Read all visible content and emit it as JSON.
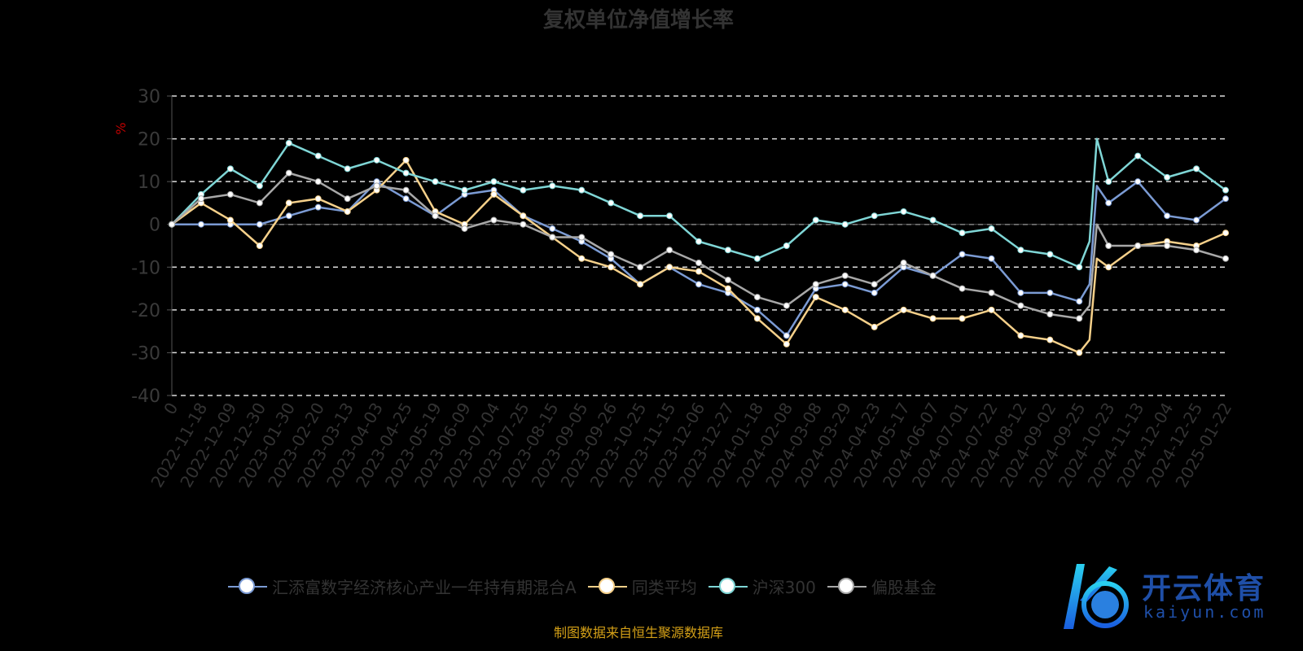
{
  "chart_data": {
    "type": "line",
    "title": "复权单位净值增长率",
    "ylabel": "%",
    "xlabel": "",
    "ylim": [
      -40,
      30
    ],
    "yticks": [
      30,
      20,
      10,
      0,
      -10,
      -20,
      -30,
      -40
    ],
    "grid": true,
    "legend_position": "bottom",
    "categories": [
      "0",
      "2022-11-18",
      "2022-12-09",
      "2022-12-30",
      "2023-01-30",
      "2023-02-20",
      "2023-03-13",
      "2023-04-03",
      "2023-04-25",
      "2023-05-19",
      "2023-06-09",
      "2023-07-04",
      "2023-07-25",
      "2023-08-15",
      "2023-09-05",
      "2023-09-26",
      "2023-10-25",
      "2023-11-15",
      "2023-12-06",
      "2023-12-27",
      "2024-01-18",
      "2024-02-08",
      "2024-03-08",
      "2024-03-29",
      "2024-04-23",
      "2024-05-17",
      "2024-06-07",
      "2024-07-01",
      "2024-07-22",
      "2024-08-12",
      "2024-09-02",
      "2024-09-25",
      "2024-10-23",
      "2024-11-13",
      "2024-12-04",
      "2024-12-25",
      "2025-01-22"
    ],
    "series": [
      {
        "name": "汇添富数字经济核心产业一年持有期混合A",
        "color": "#7b9bd4",
        "points": [
          [
            0,
            0
          ],
          [
            1,
            0
          ],
          [
            2,
            0
          ],
          [
            3,
            0
          ],
          [
            4,
            2
          ],
          [
            5,
            4
          ],
          [
            6,
            3
          ],
          [
            7,
            10
          ],
          [
            8,
            6
          ],
          [
            9,
            2
          ],
          [
            10,
            7
          ],
          [
            11,
            8
          ],
          [
            12,
            2
          ],
          [
            13,
            -1
          ],
          [
            14,
            -4
          ],
          [
            15,
            -8
          ],
          [
            16,
            -14
          ],
          [
            17,
            -10
          ],
          [
            18,
            -14
          ],
          [
            19,
            -16
          ],
          [
            20,
            -20
          ],
          [
            21,
            -26
          ],
          [
            22,
            -15
          ],
          [
            23,
            -14
          ],
          [
            24,
            -16
          ],
          [
            25,
            -10
          ],
          [
            26,
            -12
          ],
          [
            27,
            -7
          ],
          [
            28,
            -8
          ],
          [
            29,
            -16
          ],
          [
            30,
            -16
          ],
          [
            31,
            -18
          ],
          [
            31.35,
            -14
          ],
          [
            31.6,
            9
          ],
          [
            32,
            5
          ],
          [
            33,
            10
          ],
          [
            34,
            2
          ],
          [
            35,
            1
          ],
          [
            36,
            6
          ]
        ]
      },
      {
        "name": "同类平均",
        "color": "#f5d08a",
        "points": [
          [
            0,
            0
          ],
          [
            1,
            5
          ],
          [
            2,
            1
          ],
          [
            3,
            -5
          ],
          [
            4,
            5
          ],
          [
            5,
            6
          ],
          [
            6,
            3
          ],
          [
            7,
            8
          ],
          [
            8,
            15
          ],
          [
            9,
            3
          ],
          [
            10,
            0
          ],
          [
            11,
            7
          ],
          [
            12,
            2
          ],
          [
            13,
            -3
          ],
          [
            14,
            -8
          ],
          [
            15,
            -10
          ],
          [
            16,
            -14
          ],
          [
            17,
            -10
          ],
          [
            18,
            -11
          ],
          [
            19,
            -15
          ],
          [
            20,
            -22
          ],
          [
            21,
            -28
          ],
          [
            22,
            -17
          ],
          [
            23,
            -20
          ],
          [
            24,
            -24
          ],
          [
            25,
            -20
          ],
          [
            26,
            -22
          ],
          [
            27,
            -22
          ],
          [
            28,
            -20
          ],
          [
            29,
            -26
          ],
          [
            30,
            -27
          ],
          [
            31,
            -30
          ],
          [
            31.35,
            -27
          ],
          [
            31.6,
            -8
          ],
          [
            32,
            -10
          ],
          [
            33,
            -5
          ],
          [
            34,
            -4
          ],
          [
            35,
            -5
          ],
          [
            36,
            -2
          ]
        ]
      },
      {
        "name": "沪深300",
        "color": "#7fd6d6",
        "points": [
          [
            0,
            0
          ],
          [
            1,
            7
          ],
          [
            2,
            13
          ],
          [
            3,
            9
          ],
          [
            4,
            19
          ],
          [
            5,
            16
          ],
          [
            6,
            13
          ],
          [
            7,
            15
          ],
          [
            8,
            12
          ],
          [
            9,
            10
          ],
          [
            10,
            8
          ],
          [
            11,
            10
          ],
          [
            12,
            8
          ],
          [
            13,
            9
          ],
          [
            14,
            8
          ],
          [
            15,
            5
          ],
          [
            16,
            2
          ],
          [
            17,
            2
          ],
          [
            18,
            -4
          ],
          [
            19,
            -6
          ],
          [
            20,
            -8
          ],
          [
            21,
            -5
          ],
          [
            22,
            1
          ],
          [
            23,
            0
          ],
          [
            24,
            2
          ],
          [
            25,
            3
          ],
          [
            26,
            1
          ],
          [
            27,
            -2
          ],
          [
            28,
            -1
          ],
          [
            29,
            -6
          ],
          [
            30,
            -7
          ],
          [
            31,
            -10
          ],
          [
            31.35,
            -4
          ],
          [
            31.6,
            20
          ],
          [
            32,
            10
          ],
          [
            33,
            16
          ],
          [
            34,
            11
          ],
          [
            35,
            13
          ],
          [
            36,
            8
          ]
        ]
      },
      {
        "name": "偏股基金",
        "color": "#a8a8a8",
        "points": [
          [
            0,
            0
          ],
          [
            1,
            6
          ],
          [
            2,
            7
          ],
          [
            3,
            5
          ],
          [
            4,
            12
          ],
          [
            5,
            10
          ],
          [
            6,
            6
          ],
          [
            7,
            9
          ],
          [
            8,
            8
          ],
          [
            9,
            2
          ],
          [
            10,
            -1
          ],
          [
            11,
            1
          ],
          [
            12,
            0
          ],
          [
            13,
            -3
          ],
          [
            14,
            -3
          ],
          [
            15,
            -7
          ],
          [
            16,
            -10
          ],
          [
            17,
            -6
          ],
          [
            18,
            -9
          ],
          [
            19,
            -13
          ],
          [
            20,
            -17
          ],
          [
            21,
            -19
          ],
          [
            22,
            -14
          ],
          [
            23,
            -12
          ],
          [
            24,
            -14
          ],
          [
            25,
            -9
          ],
          [
            26,
            -12
          ],
          [
            27,
            -15
          ],
          [
            28,
            -16
          ],
          [
            29,
            -19
          ],
          [
            30,
            -21
          ],
          [
            31,
            -22
          ],
          [
            31.35,
            -19
          ],
          [
            31.6,
            0
          ],
          [
            32,
            -5
          ],
          [
            33,
            -5
          ],
          [
            34,
            -5
          ],
          [
            35,
            -6
          ],
          [
            36,
            -8
          ]
        ]
      }
    ]
  },
  "footer": "制图数据来自恒生聚源数据库",
  "watermark": {
    "name": "开云体育",
    "url_text": "kaiyun.com"
  }
}
